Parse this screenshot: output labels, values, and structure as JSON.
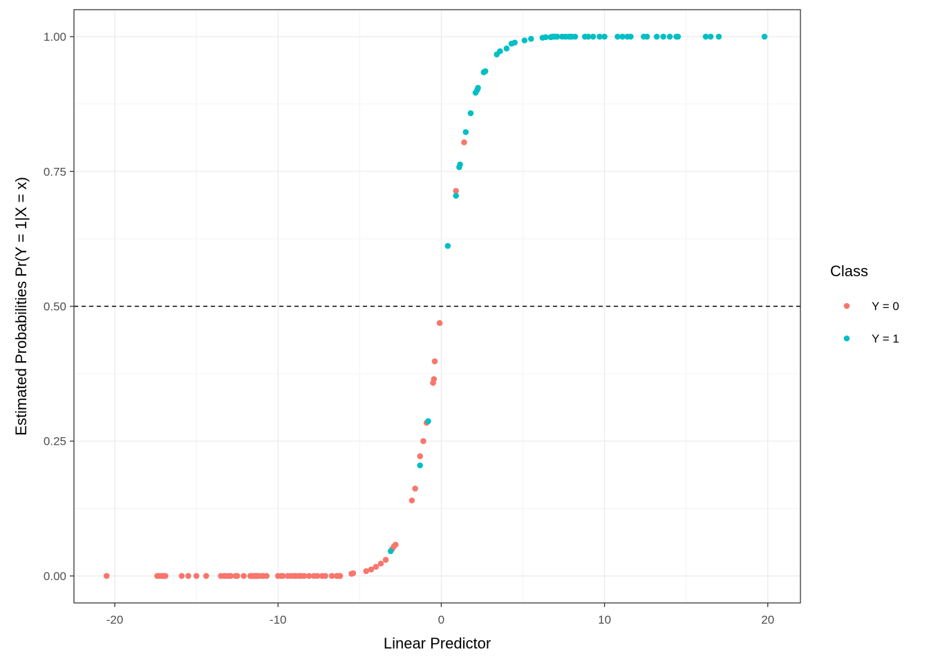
{
  "chart_data": {
    "type": "scatter",
    "title": "",
    "xlabel": "Linear Predictor",
    "ylabel": "Estimated Probabilities Pr(Y = 1|X = x)",
    "xlim": [
      -22.5,
      22
    ],
    "ylim": [
      -0.05,
      1.05
    ],
    "x_ticks": [
      -20,
      -10,
      0,
      10,
      20
    ],
    "x_tick_labels": [
      "-20",
      "-10",
      "0",
      "10",
      "20"
    ],
    "y_ticks": [
      0,
      0.25,
      0.5,
      0.75,
      1
    ],
    "y_tick_labels": [
      "0.00",
      "0.25",
      "0.50",
      "0.75",
      "1.00"
    ],
    "grid": true,
    "reference_line": {
      "y": 0.5,
      "style": "dashed"
    },
    "legend": {
      "title": "Class",
      "position": "right"
    },
    "series": [
      {
        "name": "Y = 0",
        "color": "#F8766D",
        "x": [
          -20.5,
          -17.4,
          -17.3,
          -17.2,
          -17.1,
          -17.0,
          -16.9,
          -15.9,
          -15.5,
          -15.0,
          -14.4,
          -13.5,
          -13.3,
          -13.2,
          -13.0,
          -12.9,
          -12.6,
          -12.5,
          -12.1,
          -11.7,
          -11.6,
          -11.5,
          -11.4,
          -11.3,
          -11.2,
          -11.0,
          -10.9,
          -10.7,
          -10.0,
          -9.8,
          -9.7,
          -9.4,
          -9.2,
          -9.0,
          -8.9,
          -8.7,
          -8.6,
          -8.4,
          -8.1,
          -7.8,
          -7.6,
          -7.3,
          -7.1,
          -6.7,
          -6.4,
          -6.3,
          -6.2,
          -5.5,
          -5.4,
          -4.6,
          -4.3,
          -4.0,
          -3.7,
          -3.4,
          -3.0,
          -2.9,
          -2.8,
          -1.8,
          -1.6,
          -1.3,
          -1.1,
          -0.9,
          -0.5,
          -0.45,
          -0.4,
          -0.1,
          0.9,
          1.4
        ],
        "y": [
          0.0,
          0.0,
          0.0,
          0.0,
          0.0,
          0.0,
          0.0,
          0.0,
          0.0,
          0.0,
          0.0,
          0.0,
          0.0,
          0.0,
          0.0,
          0.0,
          0.0,
          0.0,
          0.0,
          0.0,
          0.0,
          0.0,
          0.0,
          0.0,
          0.0,
          0.0,
          0.0,
          0.0,
          0.0,
          0.0,
          0.0,
          0.0,
          0.0,
          0.0,
          0.0,
          0.0,
          0.0,
          0.0,
          0.0,
          0.0,
          0.0,
          0.0,
          0.0,
          0.0,
          0.0,
          0.0,
          0.0,
          0.004,
          0.005,
          0.009,
          0.012,
          0.017,
          0.023,
          0.03,
          0.05,
          0.055,
          0.058,
          0.14,
          0.162,
          0.222,
          0.25,
          0.284,
          0.358,
          0.365,
          0.398,
          0.469,
          0.714,
          0.804
        ]
      },
      {
        "name": "Y = 1",
        "color": "#00BFC4",
        "x": [
          -3.1,
          -1.3,
          -0.8,
          0.4,
          0.9,
          1.1,
          1.15,
          1.5,
          1.8,
          2.1,
          2.2,
          2.25,
          2.6,
          2.7,
          3.4,
          3.6,
          4.0,
          4.3,
          4.5,
          5.1,
          5.5,
          6.2,
          6.4,
          6.7,
          6.8,
          6.9,
          7.0,
          7.1,
          7.4,
          7.6,
          7.8,
          7.9,
          8.0,
          8.2,
          8.8,
          9.0,
          9.3,
          9.7,
          10.0,
          10.8,
          11.1,
          11.4,
          11.6,
          12.4,
          12.6,
          13.2,
          13.6,
          14.0,
          14.4,
          14.5,
          16.2,
          16.5,
          17.0,
          19.8
        ],
        "y": [
          0.046,
          0.205,
          0.287,
          0.612,
          0.705,
          0.758,
          0.763,
          0.823,
          0.858,
          0.896,
          0.901,
          0.905,
          0.934,
          0.936,
          0.967,
          0.973,
          0.978,
          0.987,
          0.989,
          0.993,
          0.996,
          0.998,
          0.999,
          0.999,
          1.0,
          1.0,
          1.0,
          1.0,
          1.0,
          1.0,
          1.0,
          1.0,
          1.0,
          1.0,
          1.0,
          1.0,
          1.0,
          1.0,
          1.0,
          1.0,
          1.0,
          1.0,
          1.0,
          1.0,
          1.0,
          1.0,
          1.0,
          1.0,
          1.0,
          1.0,
          1.0,
          1.0,
          1.0,
          1.0
        ]
      }
    ]
  }
}
